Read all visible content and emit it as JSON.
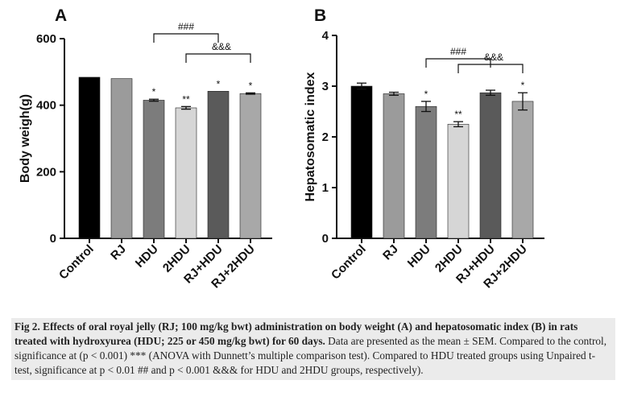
{
  "chart_data": [
    {
      "type": "bar",
      "panel": "A",
      "ylabel": "Body weigh(g)",
      "ylim": [
        0,
        600
      ],
      "yticks": [
        "0",
        "200",
        "400",
        "600"
      ],
      "categories": [
        "Control",
        "RJ",
        "HDU",
        "2HDU",
        "RJ+HDU",
        "RJ+2HDU"
      ],
      "values": [
        484,
        480,
        415,
        392,
        442,
        435
      ],
      "errors": [
        0,
        0,
        3,
        4,
        0,
        2
      ],
      "significance": [
        "",
        "",
        "*",
        "**",
        "*",
        "*"
      ],
      "bar_colors": [
        "#000000",
        "#9b9b9b",
        "#7c7c7c",
        "#d6d6d6",
        "#5a5a5a",
        "#a8a8a8"
      ],
      "brackets": [
        {
          "label": "###",
          "from": 2,
          "to": 4
        },
        {
          "label": "&&&",
          "from": 3,
          "to": 5
        }
      ]
    },
    {
      "type": "bar",
      "panel": "B",
      "ylabel": "Hepatosomatic index",
      "ylim": [
        0,
        4
      ],
      "yticks": [
        "0",
        "1",
        "2",
        "3",
        "4"
      ],
      "categories": [
        "Control",
        "RJ",
        "HDU",
        "2HDU",
        "RJ+HDU",
        "RJ+2HDU"
      ],
      "values": [
        3.0,
        2.85,
        2.6,
        2.25,
        2.87,
        2.7
      ],
      "errors": [
        0.06,
        0.03,
        0.1,
        0.05,
        0.05,
        0.17
      ],
      "significance": [
        "",
        "",
        "*",
        "**",
        "",
        "*"
      ],
      "bar_colors": [
        "#000000",
        "#9b9b9b",
        "#7c7c7c",
        "#d6d6d6",
        "#5a5a5a",
        "#a8a8a8"
      ],
      "brackets": [
        {
          "label": "###",
          "from": 2,
          "to": 4
        },
        {
          "label": "&&&",
          "from": 3,
          "to": 5
        }
      ]
    }
  ],
  "caption": {
    "title": "Fig 2. Effects of oral royal jelly (RJ; 100 mg/kg bwt) administration on body weight (A) and hepatosomatic index (B) in rats treated with hydroxyurea (HDU; 225 or 450 mg/kg bwt) for 60 days.",
    "body": " Data are presented as the mean ± SEM. Compared to the control, significance at (p < 0.001) *** (ANOVA with Dunnett’s multiple comparison test). Compared to HDU treated groups using Unpaired t-test, significance at p < 0.01 ## and p < 0.001 &&& for HDU and 2HDU groups, respectively)."
  }
}
